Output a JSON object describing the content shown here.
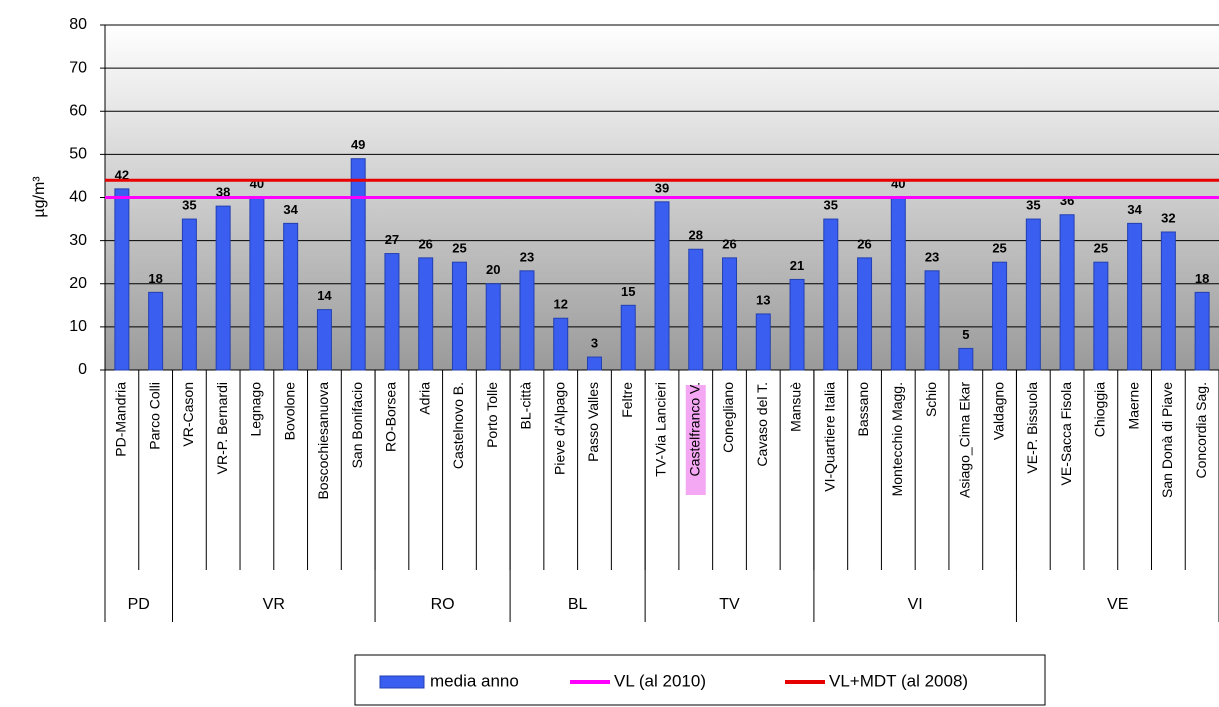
{
  "chart_data": {
    "type": "bar",
    "y_label": "µg/m³",
    "ylim": [
      0,
      80
    ],
    "yticks": [
      0,
      10,
      20,
      30,
      40,
      50,
      60,
      70,
      80
    ],
    "grid": true,
    "groups": [
      {
        "label": "PD",
        "categories": [
          "PD-Mandria",
          "Parco Colli"
        ]
      },
      {
        "label": "VR",
        "categories": [
          "VR-Cason",
          "VR-P. Bernardi",
          "Legnago",
          "Bovolone",
          "Boscochiesanuova",
          "San Bonifacio"
        ]
      },
      {
        "label": "RO",
        "categories": [
          "RO-Borsea",
          "Adria",
          "Castelnovo B.",
          "Porto Tolle"
        ]
      },
      {
        "label": "BL",
        "categories": [
          "BL-città",
          "Pieve d'Alpago",
          "Passo Valles",
          "Feltre"
        ]
      },
      {
        "label": "TV",
        "categories": [
          "TV-Via Lancieri",
          "Castelfranco V.",
          "Conegliano",
          "Cavaso del T.",
          "Mansuè"
        ]
      },
      {
        "label": "VI",
        "categories": [
          "VI-Quartiere Italia",
          "Bassano",
          "Montecchio Magg.",
          "Schio",
          "Asiago_Cima Ekar",
          "Valdagno"
        ]
      },
      {
        "label": "VE",
        "categories": [
          "VE-P. Bissuola",
          "VE-Sacca Fisola",
          "Chioggia",
          "Maerne",
          "San Donà di Piave",
          "Concordia Sag."
        ]
      }
    ],
    "series": [
      {
        "name": "media anno",
        "color": "#3a5ef0",
        "values": [
          42,
          18,
          35,
          38,
          40,
          34,
          14,
          49,
          27,
          26,
          25,
          20,
          23,
          12,
          3,
          15,
          39,
          28,
          26,
          13,
          21,
          35,
          26,
          40,
          23,
          5,
          25,
          35,
          36,
          25,
          34,
          32,
          18
        ]
      }
    ],
    "reference_lines": [
      {
        "name": "VL (al 2010)",
        "color": "#ff00ff",
        "value": 40
      },
      {
        "name": "VL+MDT (al 2008)",
        "color": "#e60000",
        "value": 44
      }
    ]
  }
}
